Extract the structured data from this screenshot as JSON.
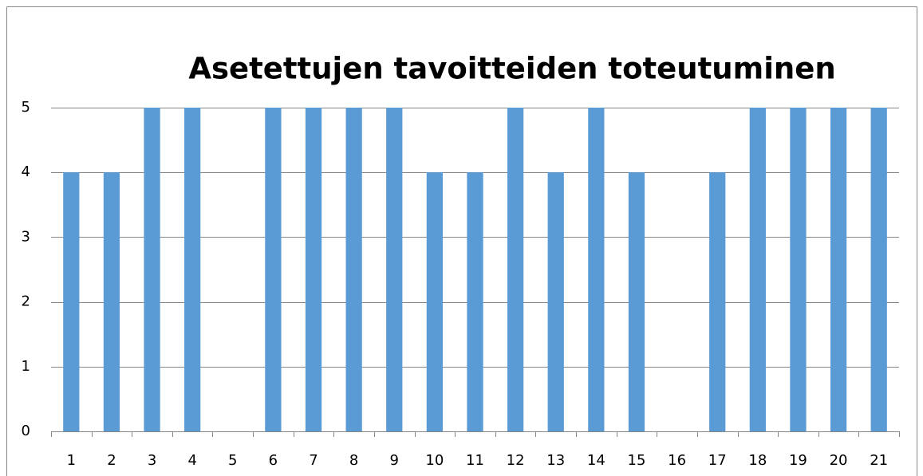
{
  "chart_data": {
    "type": "bar",
    "title": "Asetettujen tavoitteiden toteutuminen",
    "categories": [
      "1",
      "2",
      "3",
      "4",
      "5",
      "6",
      "7",
      "8",
      "9",
      "10",
      "11",
      "12",
      "13",
      "14",
      "15",
      "16",
      "17",
      "18",
      "19",
      "20",
      "21"
    ],
    "values": [
      4,
      4,
      5,
      5,
      0,
      5,
      5,
      5,
      5,
      4,
      4,
      5,
      4,
      5,
      4,
      0,
      4,
      5,
      5,
      5,
      5
    ],
    "color": "#5b9bd5",
    "ylim": [
      0,
      5
    ],
    "yticks": [
      0,
      1,
      2,
      3,
      4,
      5
    ],
    "grid": true
  }
}
